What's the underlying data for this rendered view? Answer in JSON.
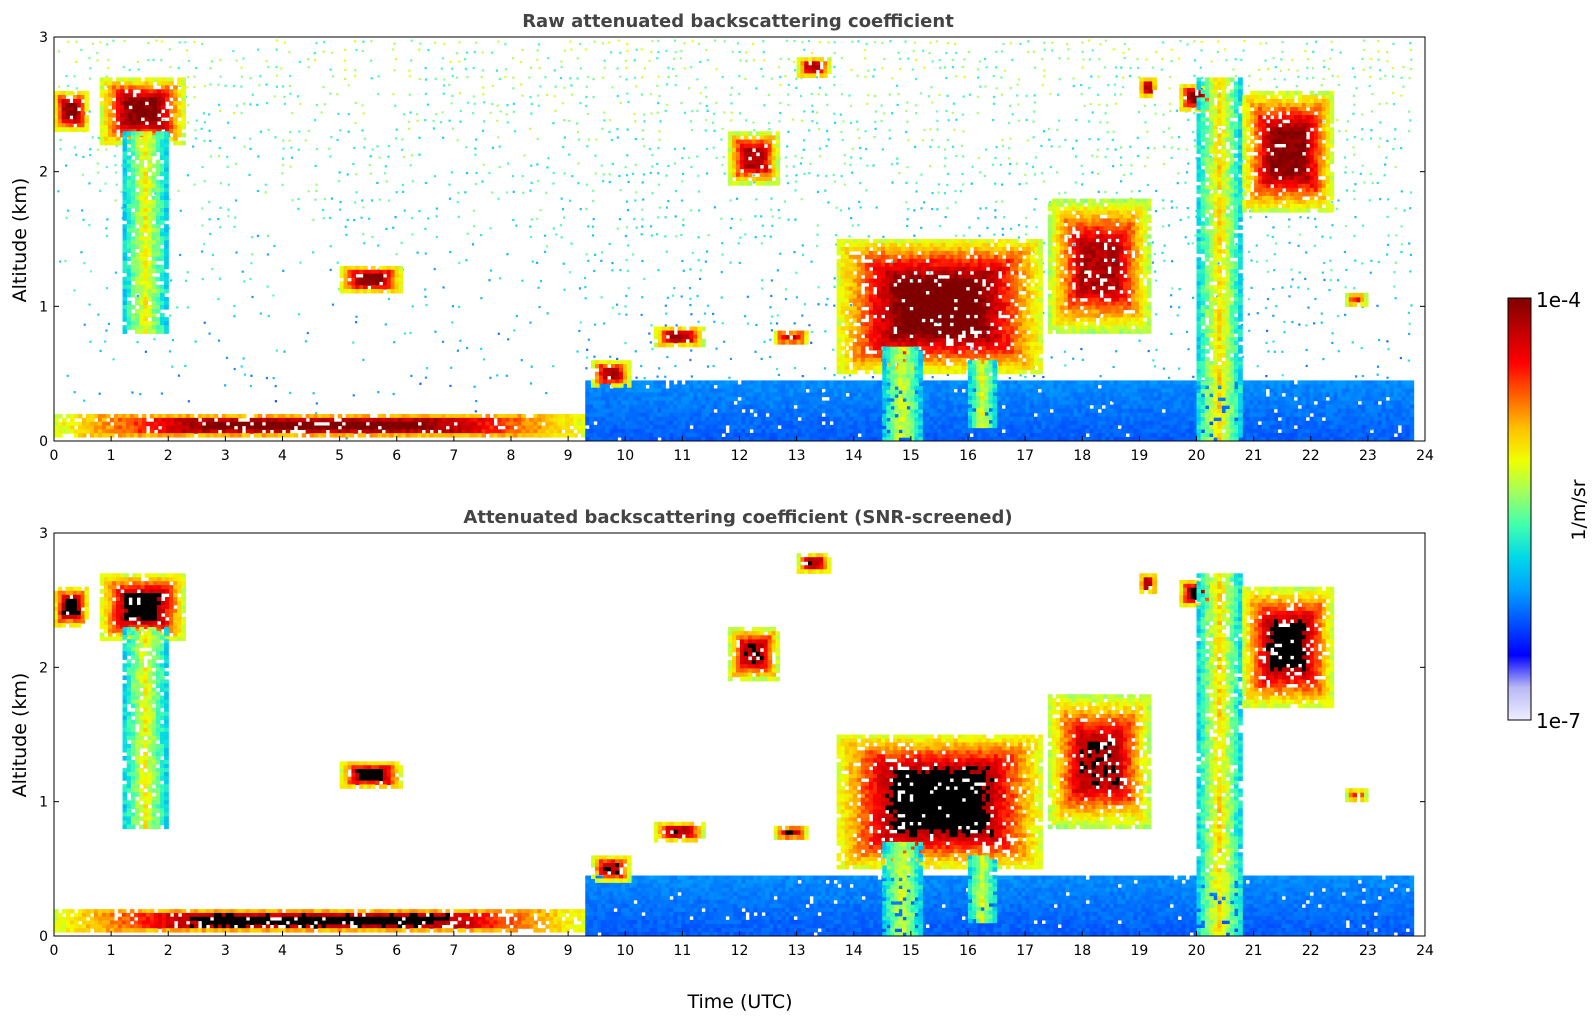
{
  "figure": {
    "colorbar": {
      "label": "1/m/sr",
      "top_label": "1e-4",
      "bottom_label": "1e-7",
      "scale": "log",
      "range": [
        1e-07,
        0.0001
      ],
      "colormap_stops": [
        "#eeeeff",
        "#b8b8f5",
        "#0000ff",
        "#0050ff",
        "#00a0ff",
        "#00d8e8",
        "#40ffb0",
        "#a0ff60",
        "#f0ff00",
        "#ffc000",
        "#ff6000",
        "#ff0000",
        "#c00000",
        "#800000"
      ]
    }
  },
  "chart_data": [
    {
      "type": "heatmap",
      "title": "Raw attenuated backscattering coefficient",
      "xlabel": "",
      "ylabel": "Altitude (km)",
      "xlim": [
        0,
        24
      ],
      "ylim": [
        0,
        3
      ],
      "xticks": [
        "0",
        "1",
        "2",
        "3",
        "4",
        "5",
        "6",
        "7",
        "8",
        "9",
        "10",
        "11",
        "12",
        "13",
        "14",
        "15",
        "16",
        "17",
        "18",
        "19",
        "20",
        "21",
        "22",
        "23",
        "24"
      ],
      "yticks": [
        "0",
        "1",
        "2",
        "3"
      ],
      "noise_field": true,
      "features": [
        {
          "kind": "surface-layer",
          "x": [
            0,
            9.3
          ],
          "y": [
            0.03,
            0.2
          ],
          "intensity": 1.0
        },
        {
          "kind": "boundary-layer",
          "x": [
            9.3,
            23.8
          ],
          "y": [
            0,
            0.45
          ],
          "intensity": 0.22
        },
        {
          "kind": "cloud",
          "x": [
            0,
            0.6
          ],
          "y": [
            2.3,
            2.6
          ],
          "intensity": 0.95
        },
        {
          "kind": "cloud",
          "x": [
            0.8,
            2.3
          ],
          "y": [
            2.2,
            2.7
          ],
          "intensity": 0.95
        },
        {
          "kind": "precip",
          "x": [
            1.2,
            2.0
          ],
          "y": [
            0.8,
            2.3
          ],
          "intensity": 0.55
        },
        {
          "kind": "cloud",
          "x": [
            5.0,
            6.1
          ],
          "y": [
            1.1,
            1.3
          ],
          "intensity": 0.95
        },
        {
          "kind": "cloud",
          "x": [
            9.4,
            10.1
          ],
          "y": [
            0.4,
            0.6
          ],
          "intensity": 0.9
        },
        {
          "kind": "cloud",
          "x": [
            10.5,
            11.4
          ],
          "y": [
            0.7,
            0.85
          ],
          "intensity": 0.9
        },
        {
          "kind": "cloud",
          "x": [
            12.6,
            13.2
          ],
          "y": [
            0.72,
            0.82
          ],
          "intensity": 0.9
        },
        {
          "kind": "cloud",
          "x": [
            11.8,
            12.7
          ],
          "y": [
            1.9,
            2.3
          ],
          "intensity": 0.9
        },
        {
          "kind": "cloud",
          "x": [
            13.0,
            13.6
          ],
          "y": [
            2.7,
            2.85
          ],
          "intensity": 0.9
        },
        {
          "kind": "cloud-deck",
          "x": [
            13.7,
            17.3
          ],
          "y": [
            0.5,
            1.5
          ],
          "intensity": 1.0
        },
        {
          "kind": "precip",
          "x": [
            14.5,
            15.2
          ],
          "y": [
            0,
            0.7
          ],
          "intensity": 0.5
        },
        {
          "kind": "precip",
          "x": [
            16.0,
            16.5
          ],
          "y": [
            0.1,
            0.6
          ],
          "intensity": 0.5
        },
        {
          "kind": "cloud",
          "x": [
            17.4,
            19.2
          ],
          "y": [
            0.8,
            1.8
          ],
          "intensity": 0.9
        },
        {
          "kind": "cloud",
          "x": [
            19.0,
            19.3
          ],
          "y": [
            2.55,
            2.7
          ],
          "intensity": 0.9
        },
        {
          "kind": "cloud",
          "x": [
            19.7,
            20.3
          ],
          "y": [
            2.45,
            2.65
          ],
          "intensity": 0.95
        },
        {
          "kind": "precip",
          "x": [
            20.0,
            20.8
          ],
          "y": [
            0,
            2.7
          ],
          "intensity": 0.6
        },
        {
          "kind": "cloud",
          "x": [
            20.8,
            22.4
          ],
          "y": [
            1.7,
            2.6
          ],
          "intensity": 0.95
        },
        {
          "kind": "cloud",
          "x": [
            22.6,
            23.0
          ],
          "y": [
            1.0,
            1.1
          ],
          "intensity": 0.8
        }
      ]
    },
    {
      "type": "heatmap",
      "title": "Attenuated backscattering coefficient (SNR-screened)",
      "xlabel": "Time (UTC)",
      "ylabel": "Altitude (km)",
      "xlim": [
        0,
        24
      ],
      "ylim": [
        0,
        3
      ],
      "xticks": [
        "0",
        "1",
        "2",
        "3",
        "4",
        "5",
        "6",
        "7",
        "8",
        "9",
        "10",
        "11",
        "12",
        "13",
        "14",
        "15",
        "16",
        "17",
        "18",
        "19",
        "20",
        "21",
        "22",
        "23",
        "24"
      ],
      "yticks": [
        "0",
        "1",
        "2",
        "3"
      ],
      "noise_field": false,
      "features": [
        {
          "kind": "surface-layer",
          "x": [
            0,
            9.3
          ],
          "y": [
            0.03,
            0.2
          ],
          "intensity": 1.0
        },
        {
          "kind": "boundary-layer",
          "x": [
            9.3,
            23.8
          ],
          "y": [
            0,
            0.45
          ],
          "intensity": 0.22
        },
        {
          "kind": "cloud",
          "x": [
            0,
            0.6
          ],
          "y": [
            2.3,
            2.6
          ],
          "intensity": 0.95
        },
        {
          "kind": "cloud",
          "x": [
            0.8,
            2.3
          ],
          "y": [
            2.2,
            2.7
          ],
          "intensity": 0.95
        },
        {
          "kind": "precip",
          "x": [
            1.2,
            2.0
          ],
          "y": [
            0.8,
            2.3
          ],
          "intensity": 0.55
        },
        {
          "kind": "cloud",
          "x": [
            5.0,
            6.1
          ],
          "y": [
            1.1,
            1.3
          ],
          "intensity": 0.95
        },
        {
          "kind": "cloud",
          "x": [
            9.4,
            10.1
          ],
          "y": [
            0.4,
            0.6
          ],
          "intensity": 0.9
        },
        {
          "kind": "cloud",
          "x": [
            10.5,
            11.4
          ],
          "y": [
            0.7,
            0.85
          ],
          "intensity": 0.9
        },
        {
          "kind": "cloud",
          "x": [
            12.6,
            13.2
          ],
          "y": [
            0.72,
            0.82
          ],
          "intensity": 0.9
        },
        {
          "kind": "cloud",
          "x": [
            11.8,
            12.7
          ],
          "y": [
            1.9,
            2.3
          ],
          "intensity": 0.9
        },
        {
          "kind": "cloud",
          "x": [
            13.0,
            13.6
          ],
          "y": [
            2.7,
            2.85
          ],
          "intensity": 0.9
        },
        {
          "kind": "cloud-deck",
          "x": [
            13.7,
            17.3
          ],
          "y": [
            0.5,
            1.5
          ],
          "intensity": 1.0
        },
        {
          "kind": "precip",
          "x": [
            14.5,
            15.2
          ],
          "y": [
            0,
            0.7
          ],
          "intensity": 0.5
        },
        {
          "kind": "precip",
          "x": [
            16.0,
            16.5
          ],
          "y": [
            0.1,
            0.6
          ],
          "intensity": 0.5
        },
        {
          "kind": "cloud",
          "x": [
            17.4,
            19.2
          ],
          "y": [
            0.8,
            1.8
          ],
          "intensity": 0.9
        },
        {
          "kind": "cloud",
          "x": [
            19.0,
            19.3
          ],
          "y": [
            2.55,
            2.7
          ],
          "intensity": 0.9
        },
        {
          "kind": "cloud",
          "x": [
            19.7,
            20.3
          ],
          "y": [
            2.45,
            2.65
          ],
          "intensity": 0.95
        },
        {
          "kind": "precip",
          "x": [
            20.0,
            20.8
          ],
          "y": [
            0,
            2.7
          ],
          "intensity": 0.6
        },
        {
          "kind": "cloud",
          "x": [
            20.8,
            22.4
          ],
          "y": [
            1.7,
            2.6
          ],
          "intensity": 0.95
        },
        {
          "kind": "cloud",
          "x": [
            22.6,
            23.0
          ],
          "y": [
            1.0,
            1.1
          ],
          "intensity": 0.8
        }
      ]
    }
  ]
}
